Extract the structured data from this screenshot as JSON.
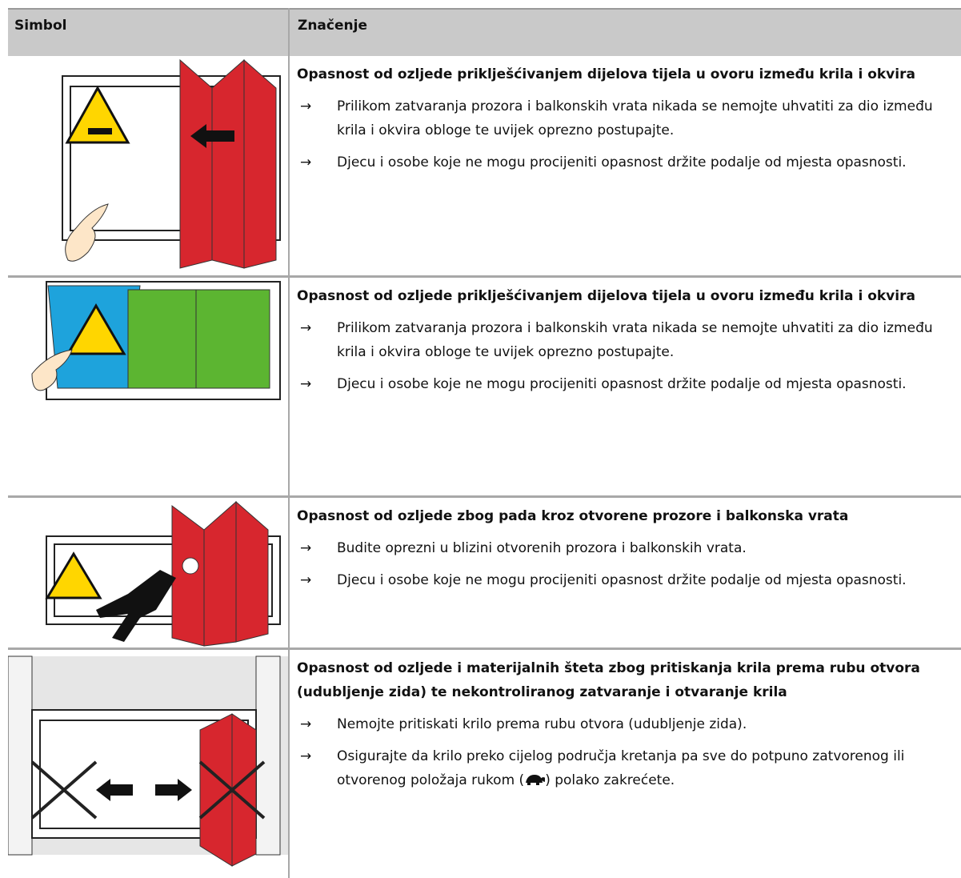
{
  "header": {
    "columns": [
      "Simbol",
      "Značenje"
    ]
  },
  "bullet_marker": "→",
  "rows": [
    {
      "title": "Opasnost od ozljede priklješćivanjem dijelova tijela u ovoru između krila i okvira",
      "bullets": [
        "Prilikom zatvaranja prozora i balkonskih vrata nikada se nemojte uhvatiti za dio između krila i okvira obloge te uvijek oprezno postupajte.",
        "Djecu i osobe koje ne mogu procijeniti opasnost držite podalje od mjesta opasnosti."
      ]
    },
    {
      "title": "Opasnost od ozljede priklješćivanjem dijelova tijela u ovoru između krila i okvira",
      "bullets": [
        "Prilikom zatvaranja prozora i balkonskih vrata nikada se nemojte uhvatiti za dio između krila i okvira obloge te uvijek oprezno postupajte.",
        "Djecu i osobe koje ne mogu procijeniti opasnost držite podalje od mjesta opasnosti."
      ]
    },
    {
      "title": "Opasnost od ozljede zbog pada kroz otvorene prozore i balkonska vrata",
      "bullets": [
        "Budite oprezni u blizini otvorenih prozora i balkonskih vrata.",
        "Djecu i osobe koje ne mogu procijeniti opasnost držite podalje od mjesta opasnosti."
      ]
    },
    {
      "title": "Opasnost od ozljede i materijalnih šteta zbog pritiskanja krila prema rubu otvora (udubljenje zida) te nekontroliranog zatvaranje i otvaranje krila",
      "bullets": [
        "Nemojte pritiskati krilo prema rubu otvora (udubljenje zida).",
        [
          "Osigurajte da krilo preko cijelog područja kretanja pa sve do potpuno zatvorenog ili otvorenog položaja rukom (",
          ") polako zakrećete."
        ]
      ]
    }
  ]
}
